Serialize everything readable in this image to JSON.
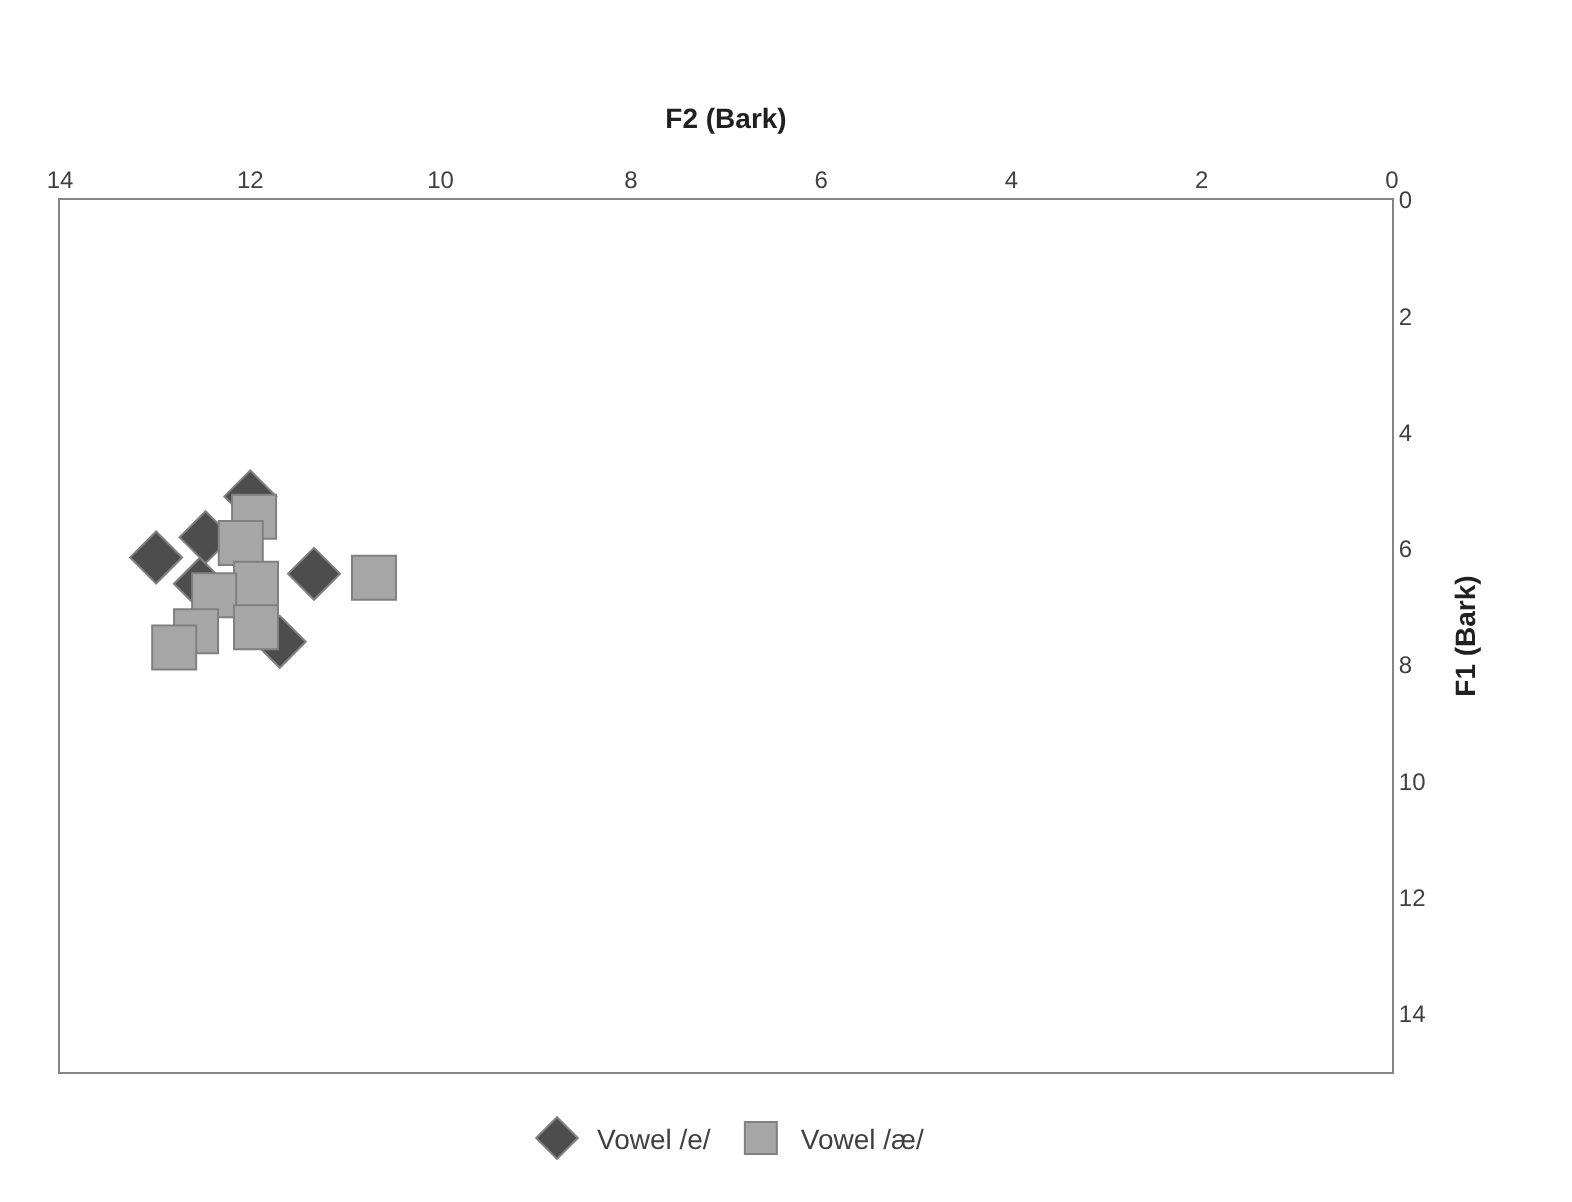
{
  "chart_data": {
    "type": "scatter",
    "xlabel": "F2 (Bark)",
    "ylabel": "F1 (Bark)",
    "xlim": [
      14,
      0
    ],
    "xticks": [
      14,
      12,
      10,
      8,
      6,
      4,
      2,
      0
    ],
    "ylim": [
      15,
      0
    ],
    "yticks": [
      0,
      2,
      4,
      6,
      8,
      10,
      12,
      14
    ],
    "legend": "bottom",
    "series": [
      {
        "name": "Vowel /e/",
        "color": "#4d4d4d",
        "marker": "diamond",
        "x": [
          12.99,
          12.0,
          11.33,
          12.47,
          12.53,
          11.69
        ],
        "values": [
          6.15,
          5.1,
          6.43,
          5.8,
          6.6,
          7.6
        ]
      },
      {
        "name": "Vowel /æ/",
        "color": "#a6a6a6",
        "marker": "square",
        "x": [
          11.96,
          10.7,
          12.1,
          11.94,
          12.38,
          11.94,
          12.57,
          12.8
        ],
        "values": [
          5.45,
          6.5,
          5.9,
          6.6,
          6.8,
          7.35,
          7.42,
          7.7
        ]
      }
    ]
  }
}
